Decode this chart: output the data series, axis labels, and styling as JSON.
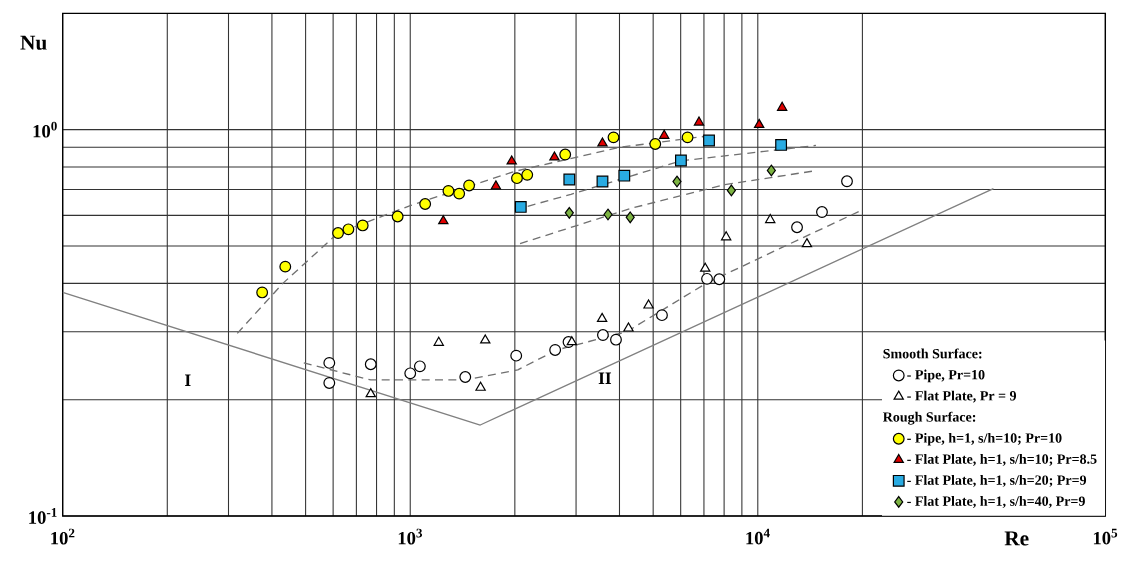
{
  "chart_data": {
    "type": "scatter",
    "xlabel": "Re",
    "ylabel": "Nu",
    "log": "xy",
    "grid": true,
    "legend": "bottom right",
    "xlim": [
      100,
      100000
    ],
    "ylim": [
      0.1,
      2
    ],
    "xticks": [
      {
        "value": 100,
        "label": "10$^{2}$"
      },
      {
        "value": 200,
        "label": null
      },
      {
        "value": 300,
        "label": null
      },
      {
        "value": 400,
        "label": null
      },
      {
        "value": 500,
        "label": null
      },
      {
        "value": 600,
        "label": null
      },
      {
        "value": 700,
        "label": null
      },
      {
        "value": 800,
        "label": null
      },
      {
        "value": 900,
        "label": null
      },
      {
        "value": 1000,
        "label": "10$^{3}$"
      },
      {
        "value": 2000,
        "label": null
      },
      {
        "value": 3000,
        "label": null
      },
      {
        "value": 4000,
        "label": null
      },
      {
        "value": 5000,
        "label": null
      },
      {
        "value": 6000,
        "label": null
      },
      {
        "value": 7000,
        "label": null
      },
      {
        "value": 8000,
        "label": null
      },
      {
        "value": 9000,
        "label": null
      },
      {
        "value": 10000,
        "label": "10$^{4}$"
      },
      {
        "value": 20000,
        "label": null
      },
      {
        "value": 100000,
        "label": "10$^{5}$"
      }
    ],
    "yticks": [
      {
        "value": 0.1,
        "label": "10$^{-1}$"
      },
      {
        "value": 0.2,
        "label": null
      },
      {
        "value": 0.3,
        "label": null
      },
      {
        "value": 0.4,
        "label": null
      },
      {
        "value": 0.5,
        "label": null
      },
      {
        "value": 0.6,
        "label": null
      },
      {
        "value": 0.7,
        "label": null
      },
      {
        "value": 0.8,
        "label": null
      },
      {
        "value": 0.9,
        "label": null
      },
      {
        "value": 1,
        "label": "10$^{0}$"
      }
    ],
    "annotations": [
      "Smooth Surface:",
      "Rough Surface:",
      "I",
      "II"
    ],
    "series": [
      {
        "name": "- Pipe, Pr=10",
        "marker": "circle",
        "color": "#000000",
        "x": [
          585,
          585,
          770,
          1000,
          1066,
          1440,
          2018,
          2612,
          2854,
          3585,
          3909,
          5300,
          7145,
          7750,
          12970,
          15300,
          18060
        ],
        "values": [
          0.249,
          0.221,
          0.247,
          0.234,
          0.244,
          0.229,
          0.26,
          0.269,
          0.282,
          0.294,
          0.286,
          0.331,
          0.411,
          0.41,
          0.559,
          0.612,
          0.735
        ]
      },
      {
        "name": "- Flat Plate, Pr = 9",
        "marker": "triangle",
        "color": "#000000",
        "x": [
          770,
          1208,
          1644,
          1594,
          2917,
          3565,
          4246,
          4850,
          7060,
          8110,
          10860,
          13850
        ],
        "values": [
          0.207,
          0.281,
          0.285,
          0.215,
          0.282,
          0.324,
          0.306,
          0.351,
          0.437,
          0.527,
          0.584,
          0.506
        ]
      },
      {
        "name": "- Pipe, h=1, s/h=10; Pr=10",
        "marker": "circle",
        "color": "#ffff00",
        "x": [
          375,
          437,
          620,
          664,
          730,
          920,
          1104,
          1288,
          1383,
          1477,
          2028,
          2171,
          2792,
          3845,
          5070,
          6280
        ],
        "values": [
          0.379,
          0.442,
          0.54,
          0.552,
          0.565,
          0.596,
          0.642,
          0.694,
          0.683,
          0.717,
          0.749,
          0.764,
          0.862,
          0.955,
          0.918,
          0.955
        ]
      },
      {
        "name": "- Flat Plate, h=1, s/h=10; Pr=8.5",
        "marker": "triangle",
        "color": "#e00000",
        "x": [
          1245,
          1764,
          1959,
          2600,
          3574,
          5380,
          6775,
          10090,
          11750
        ],
        "values": [
          0.58,
          0.714,
          0.828,
          0.848,
          0.922,
          0.965,
          1.044,
          1.03,
          1.14
        ]
      },
      {
        "name": "- Flat Plate, h=1, s/h=20; Pr=9",
        "marker": "square",
        "color": "#29abe2",
        "x": [
          2080,
          2869,
          3574,
          4130,
          6010,
          7240,
          11670
        ],
        "values": [
          0.631,
          0.743,
          0.734,
          0.76,
          0.832,
          0.937,
          0.913
        ]
      },
      {
        "name": "- Flat Plate, h=1, s/h=40, Pr=9",
        "marker": "diamond",
        "color": "#7cb342",
        "x": [
          2869,
          3707,
          4295,
          5855,
          8395,
          10940
        ],
        "values": [
          0.609,
          0.603,
          0.593,
          0.734,
          0.696,
          0.784
        ]
      },
      {
        "type": "line",
        "marker": "none",
        "line_style": "solid",
        "color": "#808080",
        "x": [
          100,
          1590,
          47640
        ],
        "values": [
          0.379,
          0.172,
          0.704
        ]
      },
      {
        "type": "line",
        "marker": "none",
        "line_style": "dashed",
        "color": "#707070",
        "x": [
          318,
          430,
          620,
          1000,
          2000,
          4000,
          7000
        ],
        "values": [
          0.297,
          0.4,
          0.54,
          0.636,
          0.78,
          0.9,
          0.96
        ]
      },
      {
        "type": "line",
        "marker": "none",
        "line_style": "dashed",
        "color": "#707070",
        "x": [
          2000,
          2900,
          6000,
          14700
        ],
        "values": [
          0.62,
          0.68,
          0.83,
          0.91
        ]
      },
      {
        "type": "line",
        "marker": "none",
        "line_style": "dashed",
        "color": "#707070",
        "x": [
          2070,
          4300,
          8000,
          14800
        ],
        "values": [
          0.507,
          0.625,
          0.72,
          0.784
        ]
      },
      {
        "type": "line",
        "marker": "none",
        "line_style": "dashed",
        "color": "#707070",
        "x": [
          494,
          770,
          1440,
          2040,
          2640,
          4200,
          7100,
          12000,
          20000
        ],
        "values": [
          0.249,
          0.225,
          0.225,
          0.239,
          0.269,
          0.3,
          0.4,
          0.5,
          0.62
        ]
      }
    ]
  }
}
